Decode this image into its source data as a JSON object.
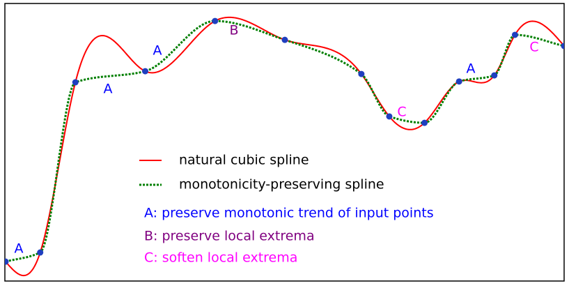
{
  "chart_data": {
    "type": "spline",
    "x": [
      0,
      6.2,
      12.5,
      25,
      37.5,
      50,
      63.7,
      68.7,
      75,
      81.2,
      87.5,
      91.2,
      100
    ],
    "values": [
      7,
      10.3,
      71.6,
      75.6,
      93.7,
      86.9,
      74.6,
      59.3,
      57,
      71.9,
      74.1,
      88.7,
      84.7
    ],
    "point_color": "#1f3fbf",
    "xlim": [
      0,
      100
    ],
    "ylim": [
      0,
      100
    ],
    "series": [
      {
        "name": "natural cubic spline",
        "color": "#ff0000",
        "method": "natural",
        "dashed": false
      },
      {
        "name": "monotonicity-preserving spline",
        "color": "#007f00",
        "method": "monotone",
        "dashed": true
      }
    ],
    "annotations": [
      {
        "text": "A",
        "color": "#0000ff"
      },
      {
        "text": "A",
        "color": "#0000ff"
      },
      {
        "text": "A",
        "color": "#0000ff"
      },
      {
        "text": "B",
        "color": "#800080"
      },
      {
        "text": "C",
        "color": "#ff00ff"
      },
      {
        "text": "A",
        "color": "#0000ff"
      },
      {
        "text": "C",
        "color": "#ff00ff"
      }
    ],
    "notes": [
      {
        "text": "A: preserve monotonic trend of input points",
        "color": "#0000ff"
      },
      {
        "text": "B: preserve local extrema",
        "color": "#800080"
      },
      {
        "text": "C: soften local extrema",
        "color": "#ff00ff"
      }
    ]
  }
}
